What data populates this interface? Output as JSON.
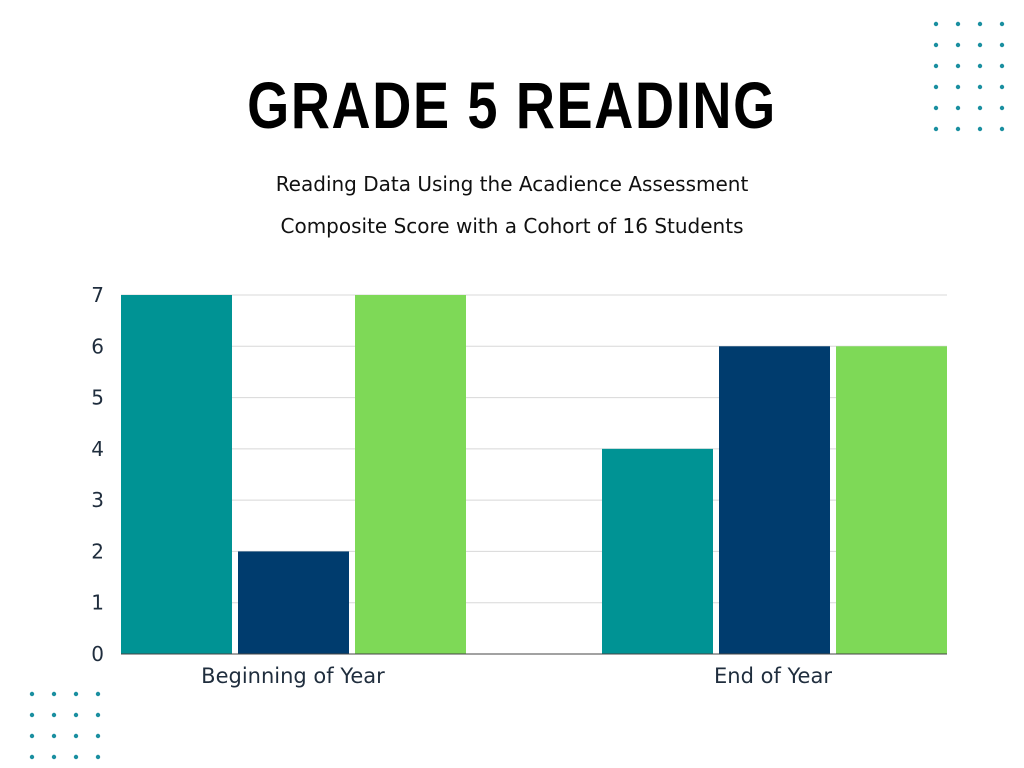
{
  "title": "GRADE 5 READING",
  "subtitle_line1": "Reading Data Using the Acadience Assessment",
  "subtitle_line2": "Composite Score with a Cohort of 16 Students",
  "colors": {
    "series1": "#009394",
    "series2": "#003c6e",
    "series3": "#7ed957",
    "grid": "#d8d8d8",
    "axis": "#444444",
    "dots": "#1a8fa0"
  },
  "chart_data": {
    "type": "bar",
    "categories": [
      "Beginning of Year",
      "End of Year"
    ],
    "series": [
      {
        "values": [
          7,
          4
        ]
      },
      {
        "values": [
          2,
          6
        ]
      },
      {
        "values": [
          7,
          6
        ]
      }
    ],
    "ylim": [
      0,
      7
    ],
    "yticks": [
      0,
      1,
      2,
      3,
      4,
      5,
      6,
      7
    ],
    "grid": true,
    "legend": "none"
  }
}
